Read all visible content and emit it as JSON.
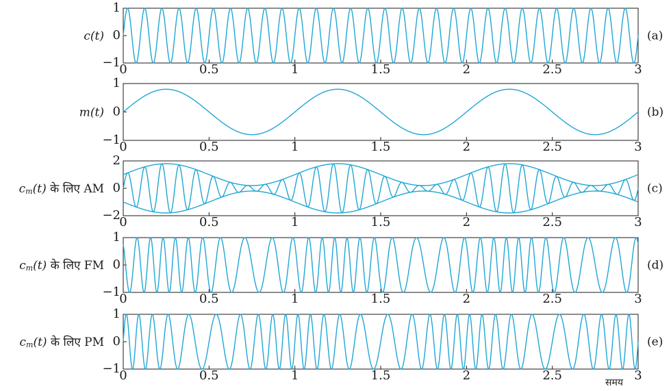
{
  "colors": {
    "wave": "#1ea6d4",
    "axis": "#1a1a1a"
  },
  "x_ticks": [
    "0",
    "0.5",
    "1",
    "1.5",
    "2",
    "2.5",
    "3"
  ],
  "x_axis_label": "समय",
  "chart_data": [
    {
      "type": "line",
      "panel": "(a)",
      "ylabel_symbol": "c(t)",
      "ylabel_suffix": "",
      "yticks": [
        "1",
        "0",
        "−1"
      ],
      "xlim": [
        0,
        3
      ],
      "ylim": [
        -1,
        1
      ],
      "series": [
        {
          "function": "sin(2*pi*fc*t)",
          "carrier_frequency": 10
        }
      ]
    },
    {
      "type": "line",
      "panel": "(b)",
      "ylabel_symbol": "m(t)",
      "ylabel_suffix": "",
      "yticks": [
        "1",
        "0",
        "−1"
      ],
      "xlim": [
        0,
        3
      ],
      "ylim": [
        -1,
        1
      ],
      "series": [
        {
          "function": "0.8*sin(2*pi*fm*t)",
          "amplitude": 0.8,
          "message_frequency": 1
        }
      ]
    },
    {
      "type": "line",
      "panel": "(c)",
      "ylabel_symbol": "c_m(t)",
      "ylabel_suffix": "के लिए AM",
      "yticks": [
        "2",
        "0",
        "−2"
      ],
      "xlim": [
        0,
        3
      ],
      "ylim": [
        -2,
        2
      ],
      "series": [
        {
          "function": "(1+0.8*sin(2*pi*t))*sin(2*pi*10*t)"
        },
        {
          "function": "1+0.8*sin(2*pi*t)",
          "role": "upper envelope"
        },
        {
          "function": "-(1+0.8*sin(2*pi*t))",
          "role": "lower envelope"
        }
      ]
    },
    {
      "type": "line",
      "panel": "(d)",
      "ylabel_symbol": "c_m(t)",
      "ylabel_suffix": "के लिए FM",
      "yticks": [
        "1",
        "0",
        "−1"
      ],
      "xlim": [
        0,
        3
      ],
      "ylim": [
        -1,
        1
      ],
      "series": [
        {
          "function": "sin(2*pi*10*t - 4*cos(2*pi*t))",
          "modulation_index": 4
        }
      ]
    },
    {
      "type": "line",
      "panel": "(e)",
      "ylabel_symbol": "c_m(t)",
      "ylabel_suffix": "के लिए PM",
      "yticks": [
        "1",
        "0",
        "−1"
      ],
      "xlim": [
        0,
        3
      ],
      "ylim": [
        -1,
        1
      ],
      "series": [
        {
          "function": "sin(2*pi*10*t + 4*sin(2*pi*t))",
          "modulation_index": 4
        }
      ]
    }
  ]
}
